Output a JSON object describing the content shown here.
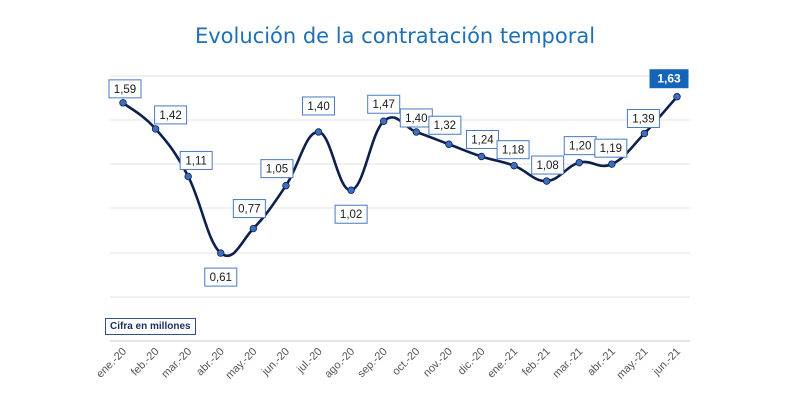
{
  "chart_data": {
    "type": "line",
    "title": "Evolución de la contratación temporal",
    "unit_note": "Cifra en millones",
    "categories": [
      "ene.-20",
      "feb.-20",
      "mar.-20",
      "abr.-20",
      "may.-20",
      "jun.-20",
      "jul.-20",
      "ago.-20",
      "sep.-20",
      "oct.-20",
      "nov.-20",
      "dic.-20",
      "ene.-21",
      "feb.-21",
      "mar.-21",
      "abr.-21",
      "may.-21",
      "jun.-21"
    ],
    "series": [
      {
        "values": [
          1.59,
          1.42,
          1.11,
          0.61,
          0.77,
          1.05,
          1.4,
          1.02,
          1.47,
          1.4,
          1.32,
          1.24,
          1.18,
          1.08,
          1.2,
          1.19,
          1.39,
          1.63
        ],
        "labels": [
          "1,59",
          "1,42",
          "1,11",
          "0,61",
          "0,77",
          "1,05",
          "1,40",
          "1,02",
          "1,47",
          "1,40",
          "1,32",
          "1,24",
          "1,18",
          "1,08",
          "1,20",
          "1,19",
          "1,39",
          "1,63"
        ]
      }
    ],
    "grid": true,
    "highlight_last": true,
    "colors": {
      "line": "#0d1f4f",
      "marker": "#3d6fc0",
      "highlight": "#1664b8",
      "title": "#1f6fb5"
    }
  }
}
